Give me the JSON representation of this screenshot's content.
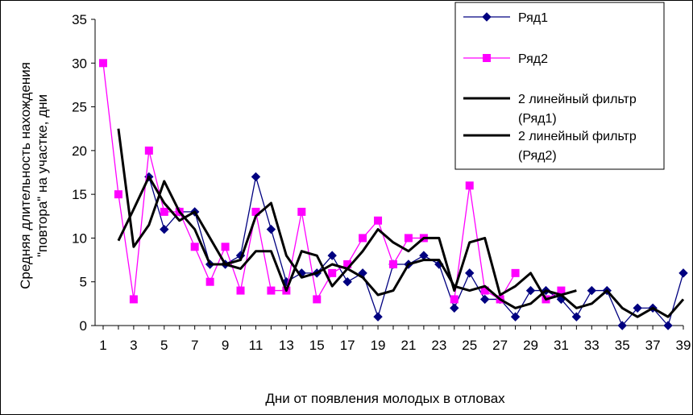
{
  "chart_data": {
    "type": "line",
    "xlabel": "Дни от появления молодых в отловах",
    "ylabel_line1": "Средняя длительность нахождения",
    "ylabel_line2": "\"повтора\" на участке, дни",
    "ylim": [
      0,
      35
    ],
    "y_ticks": [
      "0",
      "5",
      "10",
      "15",
      "20",
      "25",
      "30",
      "35"
    ],
    "x_ticks": [
      "1",
      "3",
      "5",
      "7",
      "9",
      "11",
      "13",
      "15",
      "17",
      "19",
      "21",
      "23",
      "25",
      "27",
      "29",
      "31",
      "33",
      "35",
      "37",
      "39"
    ],
    "xlim": [
      1,
      39
    ],
    "grid": false,
    "legend_position": "top-right",
    "series": [
      {
        "name": "Ряд1",
        "color": "#000080",
        "marker": "diamond",
        "x": [
          1,
          2,
          3,
          4,
          5,
          6,
          7,
          8,
          9,
          10,
          11,
          12,
          13,
          14,
          15,
          16,
          17,
          18,
          19,
          20,
          21,
          22,
          23,
          24,
          25,
          26,
          27,
          28,
          29,
          30,
          31,
          32,
          33,
          34,
          35,
          36,
          37,
          38,
          39
        ],
        "y": [
          null,
          null,
          null,
          17,
          11,
          13,
          13,
          7,
          7,
          8,
          17,
          11,
          5,
          6,
          6,
          8,
          5,
          6,
          1,
          7,
          7,
          8,
          7,
          2,
          6,
          3,
          3,
          1,
          4,
          4,
          3,
          1,
          4,
          4,
          0,
          2,
          2,
          0,
          6
        ]
      },
      {
        "name": "Ряд2",
        "color": "#FF00FF",
        "marker": "square",
        "x": [
          1,
          2,
          3,
          4,
          5,
          6,
          7,
          8,
          9,
          10,
          11,
          12,
          13,
          14,
          15,
          16,
          17,
          18,
          19,
          20,
          21,
          22,
          23,
          24,
          25,
          26,
          27,
          28,
          29,
          30,
          31,
          32,
          33,
          34,
          35,
          36,
          37,
          38,
          39
        ],
        "y": [
          30,
          15,
          3,
          20,
          13,
          13,
          9,
          5,
          9,
          4,
          13,
          4,
          4,
          13,
          3,
          6,
          7,
          10,
          12,
          7,
          10,
          10,
          null,
          3,
          16,
          4,
          3,
          6,
          null,
          3,
          4,
          null,
          null,
          null,
          null,
          null,
          null,
          null,
          null
        ]
      },
      {
        "name": "2 линейный фильтр (Ряд1)",
        "color": "#000000",
        "marker": "none",
        "x": [
          2,
          3,
          4,
          5,
          6,
          7,
          8,
          9,
          10,
          11,
          12,
          13,
          14,
          15,
          16,
          17,
          18,
          19,
          20,
          21,
          22,
          23,
          24,
          25,
          26,
          27,
          28,
          29,
          30,
          31,
          32,
          33,
          34,
          35,
          36,
          37,
          38,
          39
        ],
        "y": [
          9.7,
          13.3,
          17,
          14,
          12,
          13,
          10,
          7,
          7.5,
          12.5,
          14,
          8,
          5.5,
          6,
          7,
          6.5,
          5.5,
          3.5,
          4,
          7,
          7.5,
          7.5,
          4.5,
          4,
          4.5,
          3,
          2,
          2.5,
          4,
          3.5,
          2,
          2.5,
          4,
          2,
          1,
          2,
          1,
          3
        ]
      },
      {
        "name": "2 линейный фильтр (Ряд2)",
        "color": "#000000",
        "marker": "none",
        "x": [
          2,
          3,
          4,
          5,
          6,
          7,
          8,
          9,
          10,
          11,
          12,
          13,
          14,
          15,
          16,
          17,
          18,
          19,
          20,
          21,
          22,
          23,
          24,
          25,
          26,
          27,
          28,
          29,
          30,
          31,
          32
        ],
        "y": [
          22.5,
          9,
          11.5,
          16.5,
          13,
          11,
          7,
          7,
          6.5,
          8.5,
          8.5,
          4,
          8.5,
          8,
          4.5,
          6.5,
          8.5,
          11,
          9.5,
          8.5,
          10,
          10,
          4,
          9.5,
          10,
          3.5,
          4.5,
          6,
          3,
          3.5,
          4
        ]
      }
    ],
    "series_x_source": "x_ticks"
  },
  "legend": {
    "items": [
      {
        "label_lines": [
          "Ряд1"
        ],
        "color": "#000080",
        "marker": "diamond"
      },
      {
        "label_lines": [
          "Ряд2"
        ],
        "color": "#FF00FF",
        "marker": "square"
      },
      {
        "label_lines": [
          "2 линейный фильтр",
          "(Ряд1)"
        ],
        "color": "#000000",
        "marker": "none"
      },
      {
        "label_lines": [
          "2 линейный фильтр",
          "(Ряд2)"
        ],
        "color": "#000000",
        "marker": "none"
      }
    ]
  }
}
